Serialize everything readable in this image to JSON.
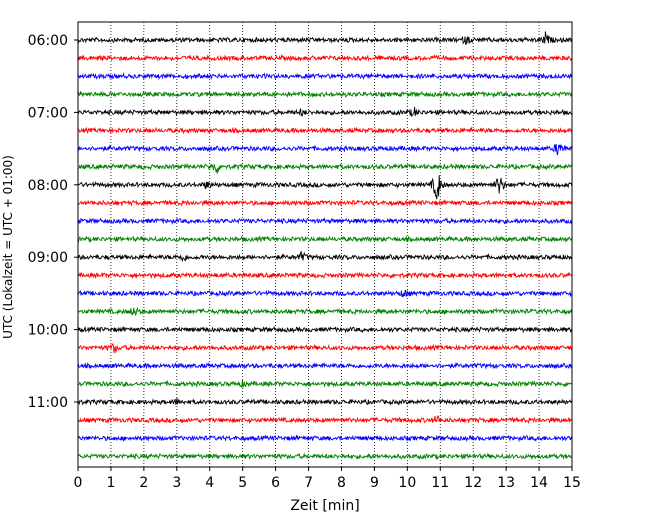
{
  "chart_data": {
    "type": "line",
    "xlabel": "Zeit  [min]",
    "ylabel": "UTC (Lokalzeit = UTC + 01:00)",
    "xlim": [
      0,
      15
    ],
    "x_ticks": [
      "0",
      "1",
      "2",
      "3",
      "4",
      "5",
      "6",
      "7",
      "8",
      "9",
      "10",
      "11",
      "12",
      "13",
      "14",
      "15"
    ],
    "y_tick_labels": [
      "06:00",
      "07:00",
      "08:00",
      "09:00",
      "10:00",
      "11:00"
    ],
    "vertical_grid": "dotted",
    "colors": {
      "black": "#000000",
      "red": "#ff0000",
      "blue": "#0000ff",
      "green": "#008000"
    },
    "traces": [
      {
        "start": "06:00",
        "color": "black"
      },
      {
        "start": "06:15",
        "color": "red"
      },
      {
        "start": "06:30",
        "color": "blue"
      },
      {
        "start": "06:45",
        "color": "green"
      },
      {
        "start": "07:00",
        "color": "black"
      },
      {
        "start": "07:15",
        "color": "red"
      },
      {
        "start": "07:30",
        "color": "blue"
      },
      {
        "start": "07:45",
        "color": "green"
      },
      {
        "start": "08:00",
        "color": "black"
      },
      {
        "start": "08:15",
        "color": "red"
      },
      {
        "start": "08:30",
        "color": "blue"
      },
      {
        "start": "08:45",
        "color": "green"
      },
      {
        "start": "09:00",
        "color": "black"
      },
      {
        "start": "09:15",
        "color": "red"
      },
      {
        "start": "09:30",
        "color": "blue"
      },
      {
        "start": "09:45",
        "color": "green"
      },
      {
        "start": "10:00",
        "color": "black"
      },
      {
        "start": "10:15",
        "color": "red"
      },
      {
        "start": "10:30",
        "color": "blue"
      },
      {
        "start": "10:45",
        "color": "green"
      },
      {
        "start": "11:00",
        "color": "black"
      },
      {
        "start": "11:15",
        "color": "red"
      },
      {
        "start": "11:30",
        "color": "blue"
      },
      {
        "start": "11:45",
        "color": "green"
      }
    ],
    "events": [
      {
        "trace": 0,
        "minute": 14.2,
        "amp": 0.35
      },
      {
        "trace": 0,
        "minute": 11.8,
        "amp": 0.18
      },
      {
        "trace": 4,
        "minute": 10.2,
        "amp": 0.22
      },
      {
        "trace": 4,
        "minute": 6.8,
        "amp": 0.12
      },
      {
        "trace": 6,
        "minute": 14.6,
        "amp": 0.45
      },
      {
        "trace": 7,
        "minute": 4.2,
        "amp": 0.35
      },
      {
        "trace": 8,
        "minute": 10.9,
        "amp": 1.0
      },
      {
        "trace": 8,
        "minute": 12.8,
        "amp": 0.55
      },
      {
        "trace": 8,
        "minute": 3.9,
        "amp": 0.15
      },
      {
        "trace": 12,
        "minute": 3.2,
        "amp": 0.18
      },
      {
        "trace": 12,
        "minute": 6.8,
        "amp": 0.22
      },
      {
        "trace": 14,
        "minute": 9.9,
        "amp": 0.2
      },
      {
        "trace": 15,
        "minute": 1.7,
        "amp": 0.25
      },
      {
        "trace": 17,
        "minute": 1.1,
        "amp": 0.22
      },
      {
        "trace": 19,
        "minute": 5.0,
        "amp": 0.12
      },
      {
        "trace": 20,
        "minute": 3.0,
        "amp": 0.12
      },
      {
        "trace": 21,
        "minute": 10.9,
        "amp": 0.2
      }
    ]
  }
}
